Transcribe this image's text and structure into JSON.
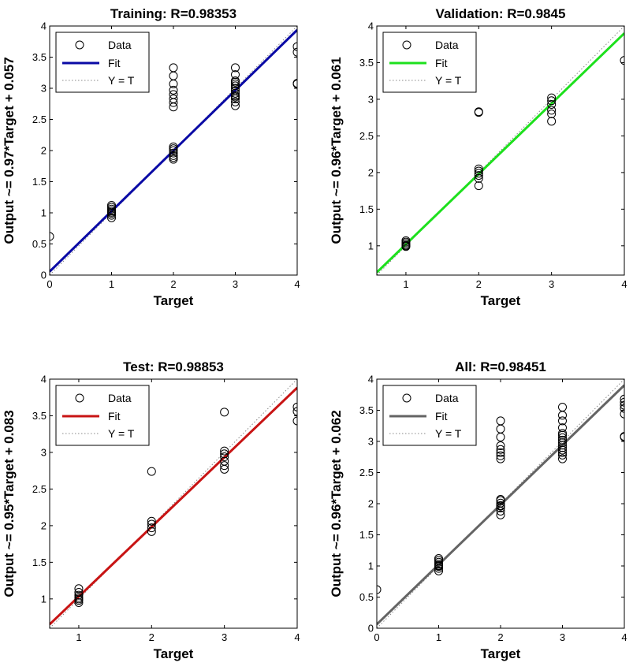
{
  "chart_data": [
    {
      "type": "scatter",
      "title": "Training: R=0.98353",
      "xlabel": "Target",
      "ylabel": "Output ~= 0.97*Target + 0.057",
      "xlim": [
        0,
        4
      ],
      "ylim": [
        0,
        4
      ],
      "xticks": [
        "0",
        "1",
        "2",
        "3",
        "4"
      ],
      "yticks": [
        "0",
        "0.5",
        "1",
        "1.5",
        "2",
        "2.5",
        "3",
        "3.5",
        "4"
      ],
      "legend": [
        "Data",
        "Fit",
        "Y = T"
      ],
      "legend_position": "top-left",
      "fit": {
        "slope": 0.97,
        "intercept": 0.057,
        "color": "#0a0aa5"
      },
      "data": {
        "x": [
          0,
          1,
          1,
          1,
          1,
          1,
          1,
          1,
          1,
          2,
          2,
          2,
          2,
          2,
          2,
          2,
          2,
          2,
          2,
          2,
          2,
          2,
          2,
          2,
          3,
          3,
          3,
          3,
          3,
          3,
          3,
          3,
          3,
          3,
          3,
          3,
          3,
          3,
          4,
          4,
          4,
          4
        ],
        "y": [
          0.62,
          0.92,
          0.96,
          0.99,
          1.01,
          1.03,
          1.06,
          1.09,
          1.12,
          1.86,
          1.92,
          1.96,
          2.0,
          2.03,
          2.06,
          2.7,
          2.77,
          2.83,
          2.9,
          2.97,
          3.07,
          3.2,
          3.33,
          1.89,
          2.72,
          2.78,
          2.83,
          2.88,
          2.92,
          2.96,
          3.0,
          3.04,
          3.07,
          3.1,
          3.12,
          3.22,
          3.33,
          2.86,
          3.07,
          3.58,
          3.67,
          3.08
        ]
      }
    },
    {
      "type": "scatter",
      "title": "Validation: R=0.9845",
      "xlabel": "Target",
      "ylabel": "Output ~= 0.96*Target + 0.061",
      "xlim": [
        0.6,
        4
      ],
      "ylim": [
        0.6,
        4
      ],
      "xticks": [
        "1",
        "2",
        "3",
        "4"
      ],
      "yticks": [
        "1",
        "1.5",
        "2",
        "2.5",
        "3",
        "3.5",
        "4"
      ],
      "legend": [
        "Data",
        "Fit",
        "Y = T"
      ],
      "legend_position": "top-left",
      "fit": {
        "slope": 0.96,
        "intercept": 0.061,
        "color": "#1de01d"
      },
      "data": {
        "x": [
          1,
          1,
          1,
          1,
          1,
          1,
          2,
          2,
          2,
          2,
          2,
          2,
          2,
          2,
          3,
          3,
          3,
          3,
          3,
          3,
          4
        ],
        "y": [
          0.99,
          1.01,
          1.03,
          1.05,
          1.07,
          1.0,
          1.82,
          1.92,
          1.96,
          1.99,
          2.02,
          2.05,
          2.82,
          2.83,
          2.7,
          2.8,
          2.85,
          2.93,
          2.98,
          3.02,
          3.53
        ]
      }
    },
    {
      "type": "scatter",
      "title": "Test: R=0.98853",
      "xlabel": "Target",
      "ylabel": "Output ~= 0.95*Target + 0.083",
      "xlim": [
        0.6,
        4
      ],
      "ylim": [
        0.6,
        4
      ],
      "xticks": [
        "1",
        "2",
        "3",
        "4"
      ],
      "yticks": [
        "1",
        "1.5",
        "2",
        "2.5",
        "3",
        "3.5",
        "4"
      ],
      "legend": [
        "Data",
        "Fit",
        "Y = T"
      ],
      "legend_position": "top-left",
      "fit": {
        "slope": 0.95,
        "intercept": 0.083,
        "color": "#c81414"
      },
      "data": {
        "x": [
          1,
          1,
          1,
          1,
          1,
          1,
          1,
          2,
          2,
          2,
          2,
          2,
          3,
          3,
          3,
          3,
          3,
          3,
          3,
          4,
          4,
          4
        ],
        "y": [
          0.95,
          0.98,
          1.0,
          1.02,
          1.05,
          1.09,
          1.14,
          1.92,
          1.97,
          2.02,
          2.06,
          2.74,
          2.77,
          2.82,
          2.88,
          2.94,
          2.98,
          3.02,
          3.55,
          3.43,
          3.56,
          3.62
        ]
      }
    },
    {
      "type": "scatter",
      "title": "All: R=0.98451",
      "xlabel": "Target",
      "ylabel": "Output ~= 0.96*Target + 0.062",
      "xlim": [
        0,
        4
      ],
      "ylim": [
        0,
        4
      ],
      "xticks": [
        "0",
        "1",
        "2",
        "3",
        "4"
      ],
      "yticks": [
        "0",
        "0.5",
        "1",
        "1.5",
        "2",
        "2.5",
        "3",
        "3.5",
        "4"
      ],
      "legend": [
        "Data",
        "Fit",
        "Y = T"
      ],
      "legend_position": "top-left",
      "fit": {
        "slope": 0.96,
        "intercept": 0.062,
        "color": "#646464"
      },
      "data": {
        "x": [
          0,
          1,
          1,
          1,
          1,
          1,
          1,
          1,
          1,
          1,
          2,
          2,
          2,
          2,
          2,
          2,
          2,
          2,
          2,
          2,
          2,
          2,
          2,
          2,
          2,
          2,
          3,
          3,
          3,
          3,
          3,
          3,
          3,
          3,
          3,
          3,
          3,
          3,
          3,
          3,
          3,
          4,
          4,
          4,
          4,
          4,
          4,
          4
        ],
        "y": [
          0.62,
          0.92,
          0.96,
          0.99,
          1.01,
          1.03,
          1.06,
          1.09,
          1.12,
          1.0,
          1.82,
          1.88,
          1.93,
          1.97,
          2.01,
          2.05,
          2.07,
          2.72,
          2.77,
          2.82,
          2.87,
          2.93,
          3.07,
          3.2,
          3.33,
          1.96,
          2.72,
          2.78,
          2.82,
          2.86,
          2.9,
          2.94,
          2.98,
          3.02,
          3.06,
          3.1,
          3.13,
          3.22,
          3.33,
          3.42,
          3.55,
          3.07,
          3.08,
          3.44,
          3.53,
          3.58,
          3.63,
          3.68
        ]
      }
    }
  ]
}
